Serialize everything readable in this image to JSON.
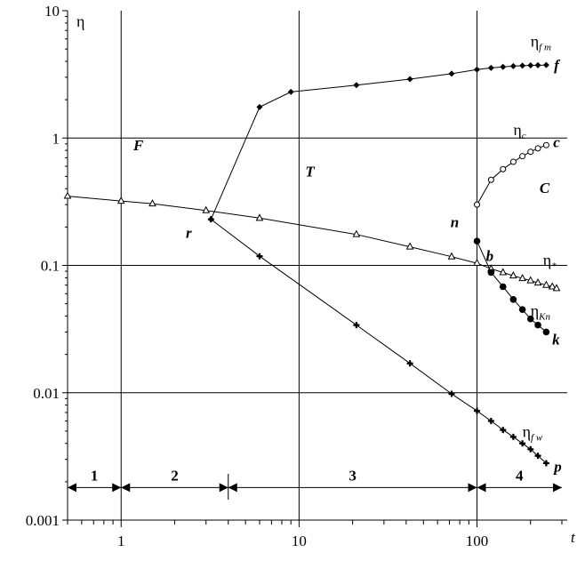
{
  "chart_data": {
    "type": "line",
    "xscale": "log",
    "yscale": "log",
    "xlim": [
      0.5,
      300
    ],
    "ylim": [
      0.001,
      10
    ],
    "xlabel": "t",
    "ylabel": "η",
    "x_ticks": [
      "1",
      "10",
      "100"
    ],
    "y_ticks": [
      "0.001",
      "0.01",
      "0.1",
      "1",
      "10"
    ],
    "grid": "vertical lines at x=1, 10, 100; horizontal lines at y=0.01, 0.1, 1",
    "series": [
      {
        "name": "η_fm",
        "curve_letter": "f",
        "marker": "filled diamond",
        "x": [
          3.2,
          6,
          9,
          21,
          42,
          72,
          100,
          120,
          140,
          160,
          180,
          200,
          220,
          245
        ],
        "y": [
          0.23,
          1.75,
          2.3,
          2.6,
          2.9,
          3.2,
          3.45,
          3.55,
          3.62,
          3.67,
          3.7,
          3.72,
          3.73,
          3.74
        ]
      },
      {
        "name": "η_c",
        "curve_letter": "c",
        "marker": "open circle",
        "x": [
          100,
          120,
          140,
          160,
          180,
          200,
          220,
          245
        ],
        "y": [
          0.3,
          0.47,
          0.57,
          0.65,
          0.72,
          0.78,
          0.83,
          0.88
        ]
      },
      {
        "name": "η_*",
        "curve_letter": "",
        "marker": "open triangle",
        "x": [
          0.5,
          1,
          1.5,
          3,
          6,
          21,
          42,
          72,
          100,
          120,
          140,
          160,
          180,
          200,
          220,
          245,
          265,
          280
        ],
        "y": [
          0.35,
          0.32,
          0.305,
          0.27,
          0.235,
          0.175,
          0.14,
          0.117,
          0.104,
          0.094,
          0.088,
          0.083,
          0.079,
          0.076,
          0.073,
          0.07,
          0.068,
          0.066
        ]
      },
      {
        "name": "η_Kn",
        "curve_letter": "k",
        "marker": "filled circle",
        "x": [
          100,
          120,
          140,
          160,
          180,
          200,
          220,
          245
        ],
        "y": [
          0.155,
          0.088,
          0.068,
          0.054,
          0.045,
          0.038,
          0.034,
          0.03
        ]
      },
      {
        "name": "η_fw",
        "curve_letter": "p",
        "marker": "filled plus",
        "x": [
          3.2,
          6,
          21,
          42,
          72,
          100,
          120,
          140,
          160,
          180,
          200,
          220,
          245
        ],
        "y": [
          0.23,
          0.118,
          0.034,
          0.017,
          0.0098,
          0.0072,
          0.006,
          0.0051,
          0.0045,
          0.004,
          0.0036,
          0.0032,
          0.0028
        ]
      }
    ],
    "annotations": {
      "series_labels": [
        {
          "main": "η",
          "sub": "f m",
          "x": 200,
          "y": 5.2
        },
        {
          "main": "η",
          "sub": "c",
          "x": 160,
          "y": 1.05
        },
        {
          "main": "η",
          "sub": "*",
          "x": 235,
          "y": 0.1
        },
        {
          "main": "η",
          "sub": "Kn",
          "x": 200,
          "y": 0.04
        },
        {
          "main": "η",
          "sub": "f w",
          "x": 180,
          "y": 0.0045
        }
      ],
      "letters": [
        {
          "text": "f",
          "x": 280,
          "y": 3.4
        },
        {
          "text": "c",
          "x": 280,
          "y": 0.85
        },
        {
          "text": "F",
          "x": 1.25,
          "y": 0.8
        },
        {
          "text": "T",
          "x": 11.5,
          "y": 0.5
        },
        {
          "text": "C",
          "x": 240,
          "y": 0.37
        },
        {
          "text": "r",
          "x": 2.4,
          "y": 0.165
        },
        {
          "text": "n",
          "x": 75,
          "y": 0.2
        },
        {
          "text": "b",
          "x": 118,
          "y": 0.108
        },
        {
          "text": "k",
          "x": 278,
          "y": 0.024
        },
        {
          "text": "p",
          "x": 285,
          "y": 0.0024
        }
      ],
      "regions": [
        {
          "label": "1",
          "x_from": 0.5,
          "x_to": 1
        },
        {
          "label": "2",
          "x_from": 1,
          "x_to": 4
        },
        {
          "label": "3",
          "x_from": 4,
          "x_to": 100
        },
        {
          "label": "4",
          "x_from": 100,
          "x_to": 300
        }
      ],
      "regions_y": 0.0018
    }
  }
}
